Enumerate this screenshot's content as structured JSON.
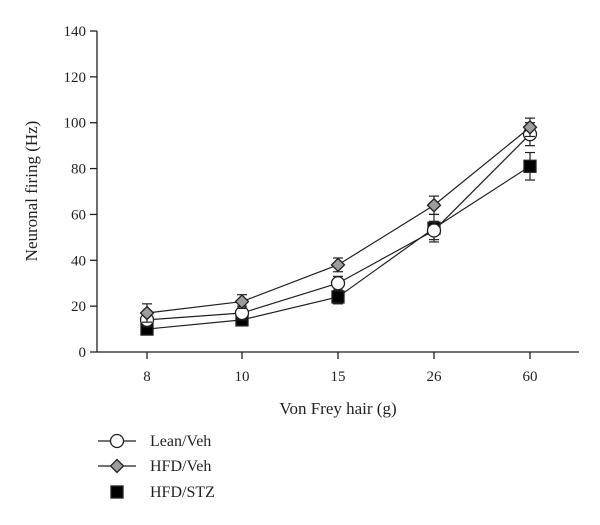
{
  "chart_data": {
    "type": "line",
    "xlabel": "Von Frey hair (g)",
    "ylabel": "Neuronal firing (Hz)",
    "categories": [
      "8",
      "10",
      "15",
      "26",
      "60"
    ],
    "ylim": [
      0,
      140
    ],
    "yticks": [
      0,
      20,
      40,
      60,
      80,
      100,
      120,
      140
    ],
    "grid": false,
    "legend_position": "bottom-left",
    "series": [
      {
        "name": "Lean/Veh",
        "marker": "circle-open",
        "fill": "#ffffff",
        "values": [
          14,
          17,
          30,
          53,
          95
        ],
        "errors": [
          3,
          3,
          3,
          4,
          5
        ]
      },
      {
        "name": "HFD/Veh",
        "marker": "diamond",
        "fill": "#9d9d9d",
        "values": [
          17,
          22,
          38,
          64,
          98
        ],
        "errors": [
          4,
          3,
          3,
          4,
          4
        ]
      },
      {
        "name": "HFD/STZ",
        "marker": "square",
        "fill": "#000000",
        "values": [
          10,
          14,
          24,
          54,
          81
        ],
        "errors": [
          2,
          2,
          3,
          6,
          6
        ]
      }
    ]
  }
}
